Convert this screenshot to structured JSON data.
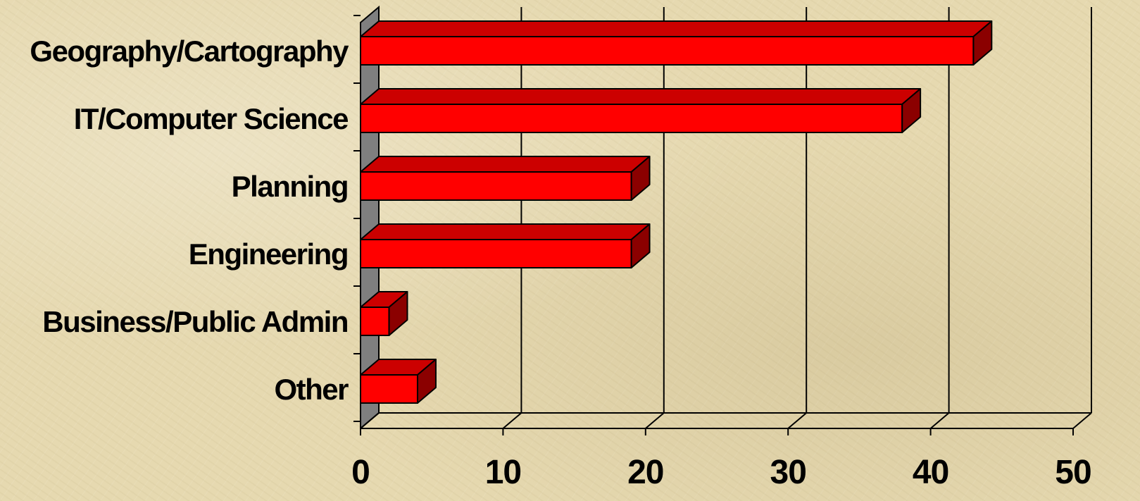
{
  "chart_data": {
    "type": "bar",
    "orientation": "horizontal",
    "style": "3d",
    "categories": [
      "Geography/Cartography",
      "IT/Computer Science",
      "Planning",
      "Engineering",
      "Business/Public Admin",
      "Other"
    ],
    "values": [
      43,
      38,
      19,
      19,
      2,
      4
    ],
    "xlim": [
      0,
      50
    ],
    "xticks": [
      "0",
      "10",
      "20",
      "30",
      "40",
      "50"
    ],
    "grid": "vertical",
    "legend": "none",
    "title": "",
    "xlabel": "",
    "ylabel": ""
  },
  "colors": {
    "bar_front": "#ff0000",
    "bar_top": "#cc0000",
    "bar_side": "#8b0000",
    "wall": "#7f7f7f",
    "background": "#e6d9b0"
  }
}
